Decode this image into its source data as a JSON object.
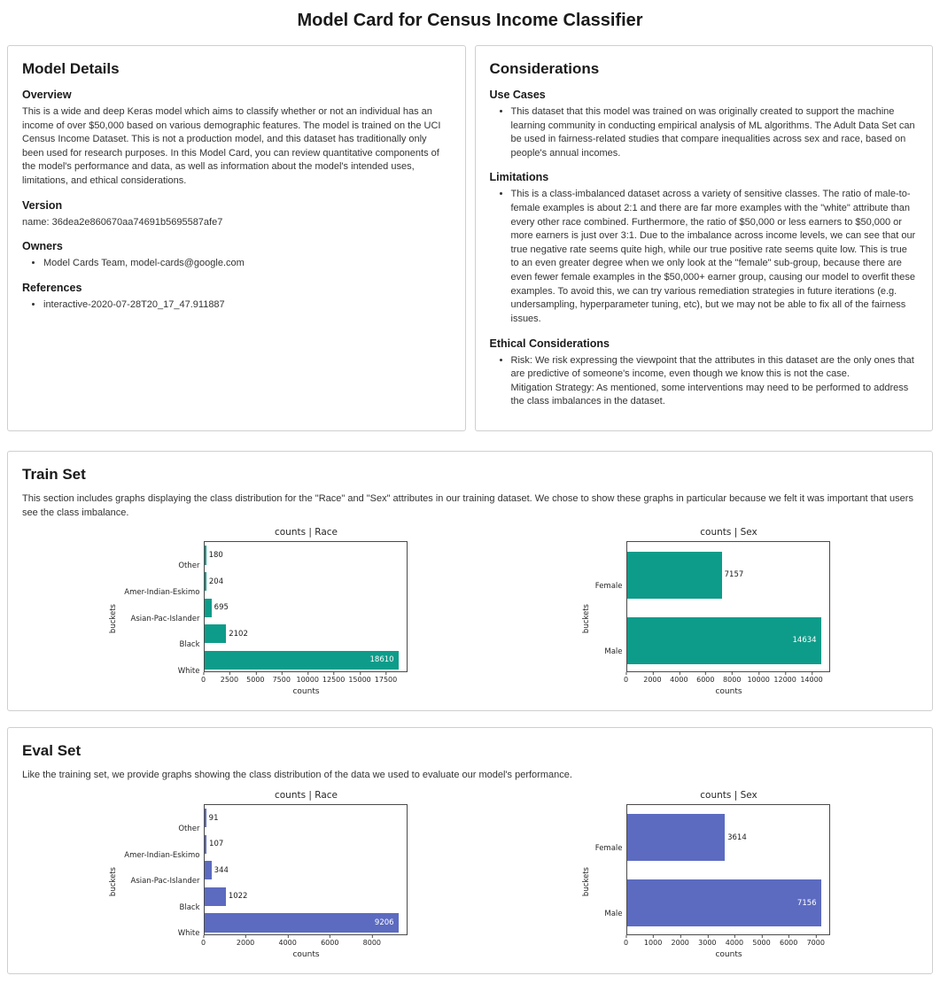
{
  "page": {
    "title": "Model Card for Census Income Classifier"
  },
  "colors": {
    "train_bar": "#0e9c8a",
    "eval_bar": "#5c6bc0"
  },
  "model_details": {
    "title": "Model Details",
    "overview_heading": "Overview",
    "overview_text": "This is a wide and deep Keras model which aims to classify whether or not an individual has an income of over $50,000 based on various demographic features. The model is trained on the UCI Census Income Dataset. This is not a production model, and this dataset has traditionally only been used for research purposes. In this Model Card, you can review quantitative components of the model's performance and data, as well as information about the model's intended uses, limitations, and ethical considerations.",
    "version_heading": "Version",
    "version_text": "name: 36dea2e860670aa74691b5695587afe7",
    "owners_heading": "Owners",
    "owners": [
      "Model Cards Team, model-cards@google.com"
    ],
    "references_heading": "References",
    "references": [
      "interactive-2020-07-28T20_17_47.911887"
    ]
  },
  "considerations": {
    "title": "Considerations",
    "use_cases_heading": "Use Cases",
    "use_cases": [
      "This dataset that this model was trained on was originally created to support the machine learning community in conducting empirical analysis of ML algorithms. The Adult Data Set can be used in fairness-related studies that compare inequalities across sex and race, based on people's annual incomes."
    ],
    "limitations_heading": "Limitations",
    "limitations": [
      "This is a class-imbalanced dataset across a variety of sensitive classes. The ratio of male-to-female examples is about 2:1 and there are far more examples with the \"white\" attribute than every other race combined. Furthermore, the ratio of $50,000 or less earners to $50,000 or more earners is just over 3:1. Due to the imbalance across income levels, we can see that our true negative rate seems quite high, while our true positive rate seems quite low. This is true to an even greater degree when we only look at the \"female\" sub-group, because there are even fewer female examples in the $50,000+ earner group, causing our model to overfit these examples. To avoid this, we can try various remediation strategies in future iterations (e.g. undersampling, hyperparameter tuning, etc), but we may not be able to fix all of the fairness issues."
    ],
    "ethical_heading": "Ethical Considerations",
    "ethical_lines": [
      "Risk: We risk expressing the viewpoint that the attributes in this dataset are the only ones that are predictive of someone's income, even though we know this is not the case.",
      "Mitigation Strategy: As mentioned, some interventions may need to be performed to address the class imbalances in the dataset."
    ]
  },
  "train_set": {
    "title": "Train Set",
    "description": "This section includes graphs displaying the class distribution for the \"Race\" and \"Sex\" attributes in our training dataset. We chose to show these graphs in particular because we felt it was important that users see the class imbalance."
  },
  "eval_set": {
    "title": "Eval Set",
    "description": "Like the training set, we provide graphs showing the class distribution of the data we used to evaluate our model's performance."
  },
  "chart_data": [
    {
      "type": "bar",
      "orientation": "horizontal",
      "title": "counts | Race",
      "xlabel": "counts",
      "ylabel": "buckets",
      "categories": [
        "Other",
        "Amer-Indian-Eskimo",
        "Asian-Pac-Islander",
        "Black",
        "White"
      ],
      "values": [
        180,
        204,
        695,
        2102,
        18610
      ],
      "xticks": [
        0,
        2500,
        5000,
        7500,
        10000,
        12500,
        15000,
        17500
      ],
      "xlim": [
        0,
        19540
      ],
      "grid": false,
      "color": "#0e9c8a"
    },
    {
      "type": "bar",
      "orientation": "horizontal",
      "title": "counts | Sex",
      "xlabel": "counts",
      "ylabel": "buckets",
      "categories": [
        "Female",
        "Male"
      ],
      "values": [
        7157,
        14634
      ],
      "xticks": [
        0,
        2000,
        4000,
        6000,
        8000,
        10000,
        12000,
        14000
      ],
      "xlim": [
        0,
        15366
      ],
      "grid": false,
      "color": "#0e9c8a"
    },
    {
      "type": "bar",
      "orientation": "horizontal",
      "title": "counts | Race",
      "xlabel": "counts",
      "ylabel": "buckets",
      "categories": [
        "Other",
        "Amer-Indian-Eskimo",
        "Asian-Pac-Islander",
        "Black",
        "White"
      ],
      "values": [
        91,
        107,
        344,
        1022,
        9206
      ],
      "xticks": [
        0,
        2000,
        4000,
        6000,
        8000
      ],
      "xlim": [
        0,
        9666
      ],
      "grid": false,
      "color": "#5c6bc0"
    },
    {
      "type": "bar",
      "orientation": "horizontal",
      "title": "counts | Sex",
      "xlabel": "counts",
      "ylabel": "buckets",
      "categories": [
        "Female",
        "Male"
      ],
      "values": [
        3614,
        7156
      ],
      "xticks": [
        0,
        1000,
        2000,
        3000,
        4000,
        5000,
        6000,
        7000
      ],
      "xlim": [
        0,
        7514
      ],
      "grid": false,
      "color": "#5c6bc0"
    }
  ]
}
